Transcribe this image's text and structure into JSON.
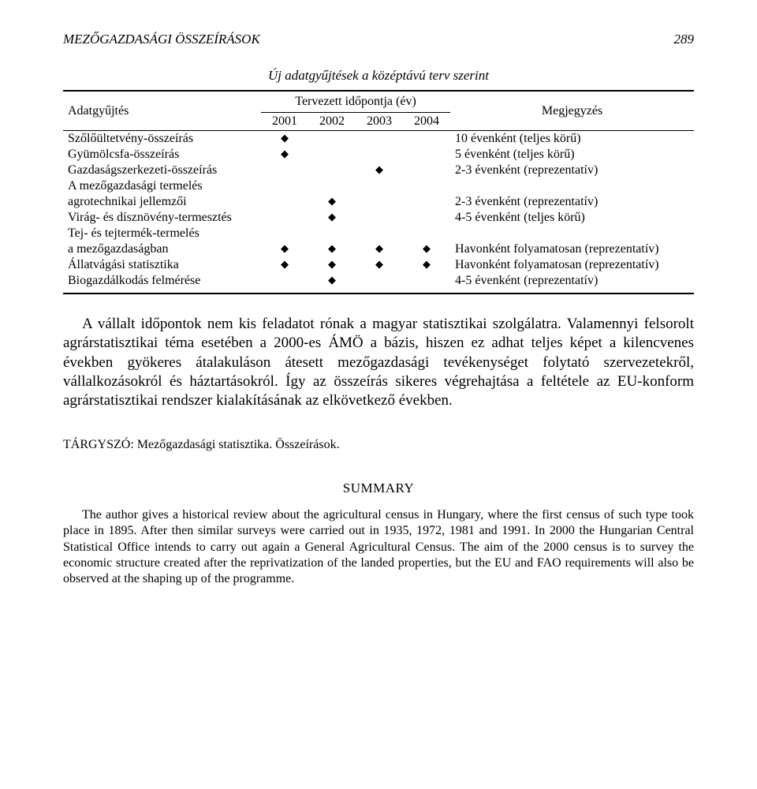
{
  "page": {
    "running_head": "MEZŐGAZDASÁGI ÖSSZEÍRÁSOK",
    "page_number": "289"
  },
  "table": {
    "title": "Új adatgyűjtések a középtávú terv szerint",
    "col_survey": "Adatgyűjtés",
    "col_time_group": "Tervezett időpontja (év)",
    "years": [
      "2001",
      "2002",
      "2003",
      "2004"
    ],
    "col_note": "Megjegyzés",
    "rows": [
      {
        "label": "Szőlőültetvény-összeírás",
        "indent": false,
        "marks": [
          true,
          false,
          false,
          false
        ],
        "note": "10 évenként (teljes körű)"
      },
      {
        "label": "Gyümölcsfa-összeírás",
        "indent": false,
        "marks": [
          true,
          false,
          false,
          false
        ],
        "note": "5 évenként (teljes körű)"
      },
      {
        "label": "Gazdaságszerkezeti-összeírás",
        "indent": false,
        "marks": [
          false,
          false,
          true,
          false
        ],
        "note": "2-3 évenként (reprezentatív)"
      },
      {
        "label": "A mezőgazdasági termelés",
        "indent": false,
        "marks": [
          false,
          false,
          false,
          false
        ],
        "note": ""
      },
      {
        "label": "agrotechnikai jellemzői",
        "indent": true,
        "marks": [
          false,
          true,
          false,
          false
        ],
        "note": "2-3 évenként (reprezentatív)"
      },
      {
        "label": "Virág- és dísznövény-termesztés",
        "indent": false,
        "marks": [
          false,
          true,
          false,
          false
        ],
        "note": "4-5 évenként (teljes körű)"
      },
      {
        "label": "Tej- és tejtermék-termelés",
        "indent": false,
        "marks": [
          false,
          false,
          false,
          false
        ],
        "note": ""
      },
      {
        "label": "a mezőgazdaságban",
        "indent": true,
        "marks": [
          true,
          true,
          true,
          true
        ],
        "note": "Havonként folyamatosan (reprezentatív)"
      },
      {
        "label": "Állatvágási statisztika",
        "indent": false,
        "marks": [
          true,
          true,
          true,
          true
        ],
        "note": "Havonként folyamatosan (reprezentatív)"
      },
      {
        "label": "Biogazdálkodás felmérése",
        "indent": false,
        "marks": [
          false,
          true,
          false,
          false
        ],
        "note": "4-5 évenként (reprezentatív)"
      }
    ],
    "marker_glyph": "◆",
    "colors": {
      "text": "#000000",
      "background": "#ffffff"
    }
  },
  "body_paragraph": "A vállalt időpontok nem kis feladatot rónak a magyar statisztikai szolgálatra. Valamennyi felsorolt agrárstatisztikai téma esetében a 2000-es ÁMÖ a bázis, hiszen ez adhat teljes képet a kilencvenes években gyökeres átalakuláson átesett mezőgazdasági tevékenységet folytató szervezetekről, vállalkozásokról és háztartásokról. Így az összeírás sikeres végrehajtása a feltétele az EU-konform agrárstatisztikai rendszer kialakításának az elkövetkező években.",
  "tags_line": "TÁRGYSZÓ: Mezőgazdasági statisztika. Összeírások.",
  "summary": {
    "heading": "SUMMARY",
    "text": "The author gives a historical review about the agricultural census in Hungary, where the first census of such type took place in 1895. After then similar surveys were carried out in 1935, 1972, 1981 and 1991. In 2000 the Hungarian Central Statistical Office intends to carry out again a General Agricultural Census. The aim of the 2000 census is to survey the economic structure created after the reprivatization of the landed properties, but the EU and FAO requirements will also be observed at the shaping up of the programme."
  }
}
